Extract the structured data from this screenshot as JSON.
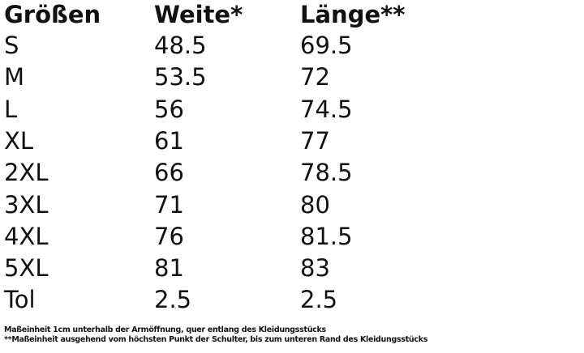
{
  "table": {
    "header": [
      "Größen",
      "Weite*",
      "Länge**"
    ],
    "rows": [
      [
        "S",
        "48.5",
        "69.5"
      ],
      [
        "M",
        "53.5",
        "72"
      ],
      [
        "L",
        "56",
        "74.5"
      ],
      [
        "XL",
        "61",
        "77"
      ],
      [
        "2XL",
        "66",
        "78.5"
      ],
      [
        "3XL",
        "71",
        "80"
      ],
      [
        "4XL",
        "76",
        "81.5"
      ],
      [
        "5XL",
        "81",
        "83"
      ],
      [
        "Tol",
        "2.5",
        "2.5"
      ]
    ]
  },
  "footnotes": [
    "Maßeinheit 1cm unterhalb der Armöffnung, quer entlang des Kleidungsstücks",
    "**Maßeinheit ausgehend vom höchsten Punkt der Schulter, bis zum unteren Rand des Kleidungsstücks"
  ]
}
